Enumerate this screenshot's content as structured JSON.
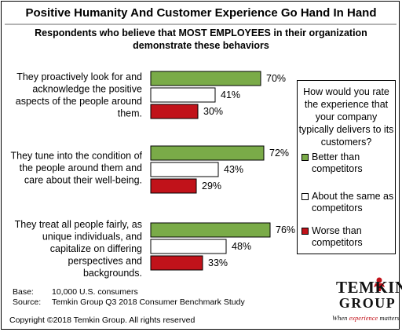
{
  "chart_data": {
    "type": "bar",
    "orientation": "horizontal",
    "title": "Positive Humanity And Customer Experience Go Hand In Hand",
    "subtitle": "Respondents who believe that MOST EMPLOYEES in their organization demonstrate these behaviors",
    "xlim": [
      0,
      100
    ],
    "categories": [
      "They proactively look for and acknowledge the positive aspects of the people around them.",
      "They tune into the condition of the people around them and care about their well-being.",
      "They treat all people fairly, as unique individuals, and capitalize on differing perspectives and backgrounds."
    ],
    "series": [
      {
        "name": "Better than competitors",
        "color": "#7aab48",
        "values": [
          70,
          72,
          76
        ],
        "labels": [
          "70%",
          "72%",
          "76%"
        ]
      },
      {
        "name": "About the same as competitors",
        "color": "#ffffff",
        "values": [
          41,
          43,
          48
        ],
        "labels": [
          "41%",
          "43%",
          "48%"
        ]
      },
      {
        "name": "Worse than competitors",
        "color": "#c1121a",
        "values": [
          30,
          29,
          33
        ],
        "labels": [
          "30%",
          "29%",
          "33%"
        ]
      }
    ],
    "legend": {
      "title": "How would you rate the experience that your company typically delivers to its customers?",
      "position": "right"
    },
    "grid": false
  },
  "footer": {
    "base_label": "Base:",
    "base_value": "10,000 U.S. consumers",
    "source_label": "Source:",
    "source_value": "Temkin Group Q3 2018 Consumer Benchmark Study",
    "copyright": "Copyright ©2018 Temkin Group. All rights reserved"
  },
  "logo": {
    "line1": "TEMKIN",
    "line2": "GROUP",
    "tagline_pre": "When ",
    "tagline_accent": "experience",
    "tagline_post": " matters",
    "accent_color": "#c1121a"
  }
}
